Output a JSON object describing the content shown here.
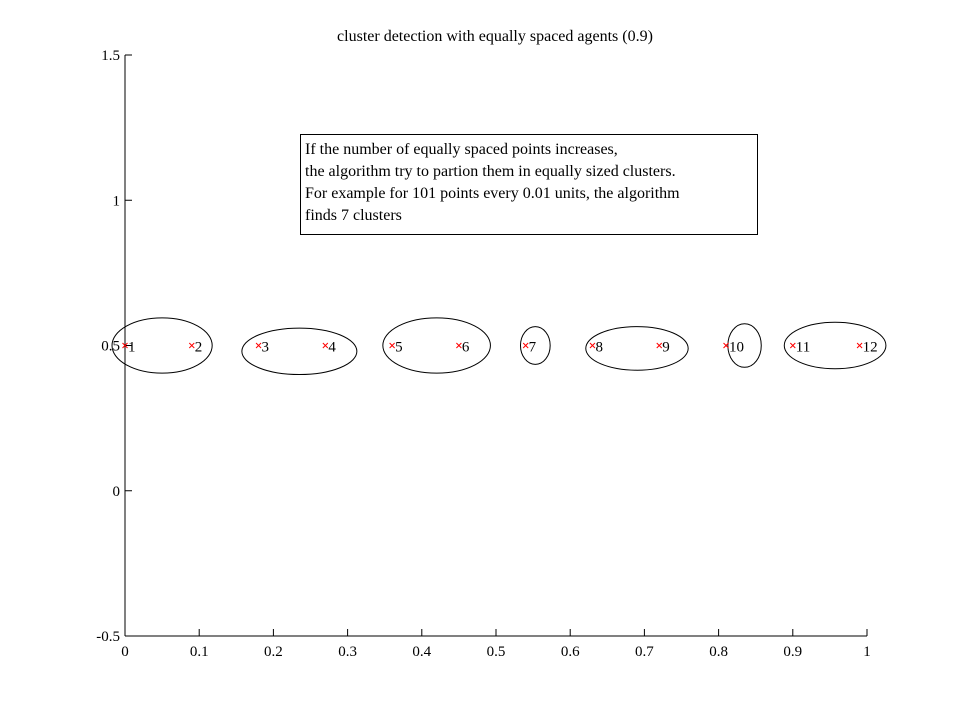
{
  "chart_data": {
    "type": "scatter",
    "title": "cluster detection with equally spaced agents (0.9)",
    "xlabel": "",
    "ylabel": "",
    "xlim": [
      0,
      1
    ],
    "ylim": [
      -0.5,
      1.5
    ],
    "xticks": [
      0,
      0.1,
      0.2,
      0.3,
      0.4,
      0.5,
      0.6,
      0.7,
      0.8,
      0.9,
      1
    ],
    "xtick_labels": [
      "0",
      "0.1",
      "0.2",
      "0.3",
      "0.4",
      "0.5",
      "0.6",
      "0.7",
      "0.8",
      "0.9",
      "1"
    ],
    "yticks": [
      -0.5,
      0,
      0.5,
      1,
      1.5
    ],
    "ytick_labels": [
      "-0.5",
      "0",
      "0.5",
      "1",
      "1.5"
    ],
    "grid": false,
    "marker_color": "#ff0000",
    "points": [
      {
        "label": "1",
        "x": 0.0,
        "y": 0.5
      },
      {
        "label": "2",
        "x": 0.09,
        "y": 0.5
      },
      {
        "label": "3",
        "x": 0.18,
        "y": 0.5
      },
      {
        "label": "4",
        "x": 0.27,
        "y": 0.5
      },
      {
        "label": "5",
        "x": 0.36,
        "y": 0.5
      },
      {
        "label": "6",
        "x": 0.45,
        "y": 0.5
      },
      {
        "label": "7",
        "x": 0.54,
        "y": 0.5
      },
      {
        "label": "8",
        "x": 0.63,
        "y": 0.5
      },
      {
        "label": "9",
        "x": 0.72,
        "y": 0.5
      },
      {
        "label": "10",
        "x": 0.81,
        "y": 0.5
      },
      {
        "label": "11",
        "x": 0.9,
        "y": 0.5
      },
      {
        "label": "12",
        "x": 0.99,
        "y": 0.5
      }
    ],
    "clusters": [
      {
        "center_x": 0.05,
        "center_y": 0.5,
        "width": 0.135,
        "height": 0.19
      },
      {
        "center_x": 0.235,
        "center_y": 0.48,
        "width": 0.155,
        "height": 0.16
      },
      {
        "center_x": 0.42,
        "center_y": 0.5,
        "width": 0.145,
        "height": 0.19
      },
      {
        "center_x": 0.553,
        "center_y": 0.5,
        "width": 0.04,
        "height": 0.13
      },
      {
        "center_x": 0.69,
        "center_y": 0.49,
        "width": 0.138,
        "height": 0.15
      },
      {
        "center_x": 0.835,
        "center_y": 0.5,
        "width": 0.045,
        "height": 0.15
      },
      {
        "center_x": 0.957,
        "center_y": 0.5,
        "width": 0.137,
        "height": 0.16
      }
    ],
    "annotation": [
      "If the number of equally spaced points increases,",
      "the algorithm try to partion them in equally sized clusters.",
      "For example for 101 points every 0.01 units, the algorithm",
      "finds 7 clusters"
    ]
  }
}
